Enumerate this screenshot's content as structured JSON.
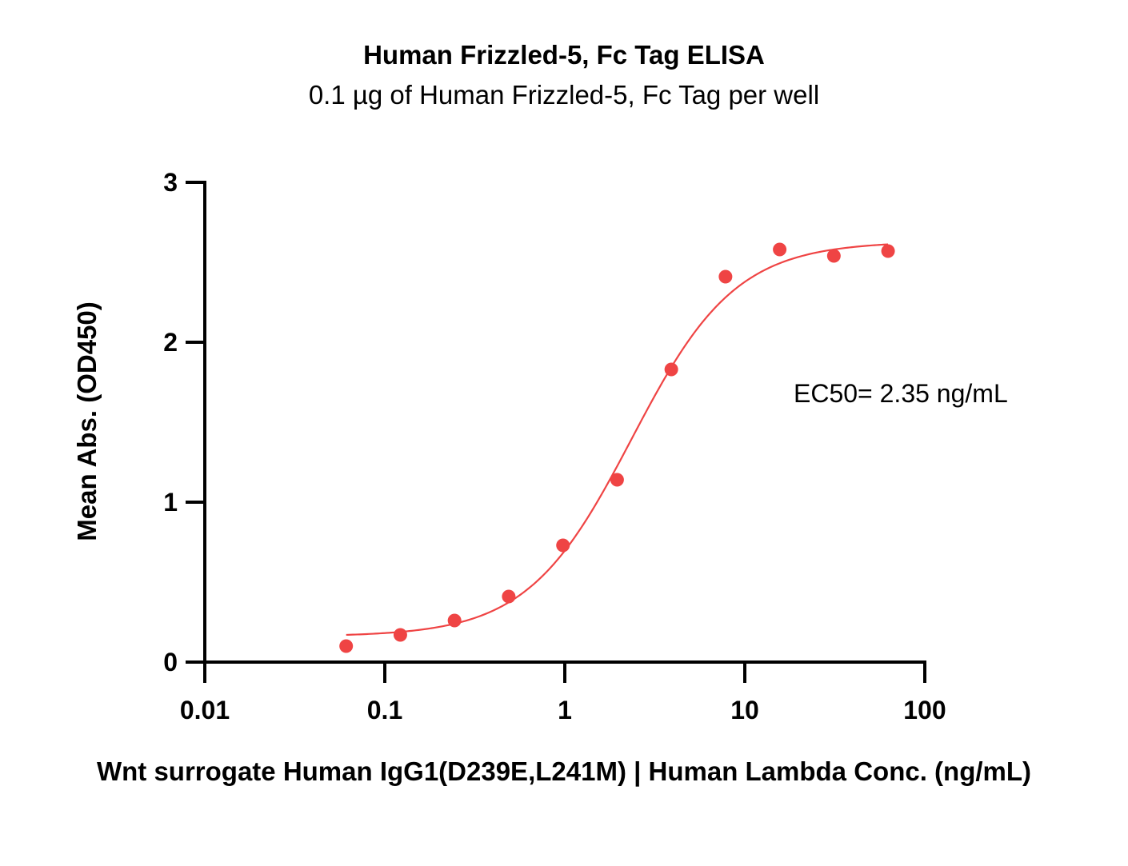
{
  "chart_data": {
    "type": "scatter",
    "title": "Human Frizzled-5, Fc Tag ELISA",
    "subtitle": "0.1 µg of Human Frizzled-5, Fc Tag per well",
    "xlabel": "Wnt surrogate Human IgG1(D239E,L241M) | Human Lambda Conc. (ng/mL)",
    "ylabel": "Mean Abs. (OD450)",
    "x_scale": "log",
    "xlim": [
      0.01,
      100
    ],
    "ylim": [
      0,
      3
    ],
    "x_ticks": [
      "0.01",
      "0.1",
      "1",
      "10",
      "100"
    ],
    "y_ticks": [
      "0",
      "1",
      "2",
      "3"
    ],
    "grid": false,
    "annotation": "EC50= 2.35 ng/mL",
    "series": [
      {
        "color": "#ef4444",
        "x": [
          0.061,
          0.122,
          0.244,
          0.488,
          0.977,
          1.953,
          3.906,
          7.813,
          15.625,
          31.25,
          62.5
        ],
        "y": [
          0.1,
          0.17,
          0.26,
          0.41,
          0.73,
          1.14,
          1.83,
          2.41,
          2.58,
          2.54,
          2.57
        ]
      }
    ],
    "fit_curve": {
      "type": "4PL",
      "color": "#ef4444",
      "bottom": 0.16,
      "top": 2.63,
      "ec50": 2.35,
      "hill": 1.5,
      "x_range": [
        0.061,
        62.5
      ]
    }
  }
}
